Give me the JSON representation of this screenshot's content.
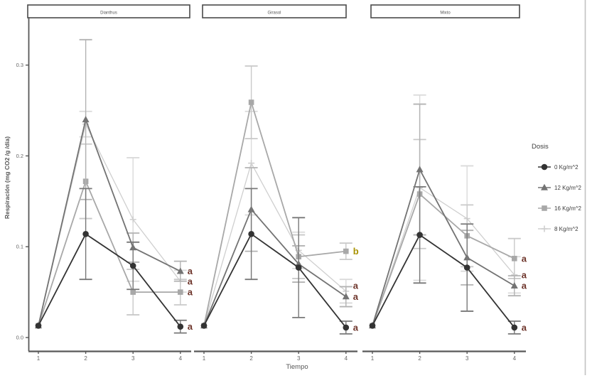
{
  "chart_data": {
    "type": "line",
    "x": [
      1,
      2,
      3,
      4
    ],
    "xlabel": "Tiempo",
    "ylabel": "Respiración (mg CO2 /g /día)",
    "ylim": [
      0,
      0.34
    ],
    "ytick_values": [
      0,
      0.1,
      0.2,
      0.3
    ],
    "ytick_labels": [
      "0.0",
      "0.1",
      "0.2",
      "0.3"
    ],
    "xtick_labels": [
      "1",
      "2",
      "3",
      "4"
    ],
    "grid": false,
    "legend": {
      "title": "Dosis",
      "position": "right",
      "entries": [
        "0 Kg/m^2",
        "12 Kg/m^2",
        "16 Kg/m^2",
        "8 Kg/m^2"
      ]
    },
    "series_defs": [
      {
        "id": "d0",
        "name": "0 Kg/m^2",
        "color": "#333333",
        "err_color": "#787878",
        "marker": "circle"
      },
      {
        "id": "d12",
        "name": "12 Kg/m^2",
        "color": "#737373",
        "err_color": "#b3b3b3",
        "marker": "triangle"
      },
      {
        "id": "d16",
        "name": "16 Kg/m^2",
        "color": "#a8a8a8",
        "err_color": "#c9c9c9",
        "marker": "square"
      },
      {
        "id": "d8",
        "name": "8 Kg/m^2",
        "color": "#cfcfcf",
        "err_color": "#dadada",
        "marker": "plus"
      }
    ],
    "letter_colors": {
      "a": "#6e352b",
      "b": "#a89200"
    },
    "panels": [
      {
        "title": "Dianthus",
        "series": {
          "d0": {
            "values": [
              0.013,
              0.114,
              0.079,
              0.012
            ],
            "errors": [
              0,
              0.05,
              0.026,
              0.007
            ],
            "letter": "a"
          },
          "d12": {
            "values": [
              0.013,
              0.24,
              0.099,
              0.073
            ],
            "errors": [
              0,
              0.088,
              0.016,
              0.011
            ],
            "letter": "a"
          },
          "d16": {
            "values": [
              0.013,
              0.172,
              0.05,
              0.05
            ],
            "errors": [
              0,
              0.041,
              0.025,
              0.014
            ],
            "letter": "a"
          },
          "d8": {
            "values": [
              0.013,
              0.235,
              0.13,
              0.062
            ],
            "errors": [
              0,
              0.014,
              0.068,
              0.012
            ],
            "letter": "a"
          }
        }
      },
      {
        "title": "Girasol",
        "series": {
          "d0": {
            "values": [
              0.013,
              0.114,
              0.077,
              0.011
            ],
            "errors": [
              0,
              0.05,
              0.055,
              0.007
            ],
            "letter": "a"
          },
          "d12": {
            "values": [
              0.013,
              0.141,
              0.081,
              0.045
            ],
            "errors": [
              0,
              0.046,
              0.02,
              0.011
            ],
            "letter": "a"
          },
          "d16": {
            "values": [
              0.013,
              0.259,
              0.089,
              0.095
            ],
            "errors": [
              0,
              0.04,
              0.024,
              0.009
            ],
            "letter": "b"
          },
          "d8": {
            "values": [
              0.013,
              0.192,
              0.096,
              0.051
            ],
            "errors": [
              0,
              0.057,
              0.02,
              0.013
            ],
            "letter": "a",
            "letter_at": 0.057
          }
        }
      },
      {
        "title": "Mixto",
        "series": {
          "d0": {
            "values": [
              0.013,
              0.113,
              0.077,
              0.011
            ],
            "errors": [
              0,
              0.053,
              0.048,
              0.007
            ],
            "letter": "a"
          },
          "d12": {
            "values": [
              0.013,
              0.185,
              0.088,
              0.057
            ],
            "errors": [
              0,
              0.072,
              0.03,
              0.011
            ],
            "letter": "a"
          },
          "d16": {
            "values": [
              0.013,
              0.158,
              0.112,
              0.087
            ],
            "errors": [
              0,
              0.06,
              0.034,
              0.022
            ],
            "letter": "a"
          },
          "d8": {
            "values": [
              0.013,
              0.165,
              0.131,
              0.069
            ],
            "errors": [
              0,
              0.102,
              0.058,
              0.02
            ],
            "letter": "a"
          }
        }
      }
    ]
  }
}
